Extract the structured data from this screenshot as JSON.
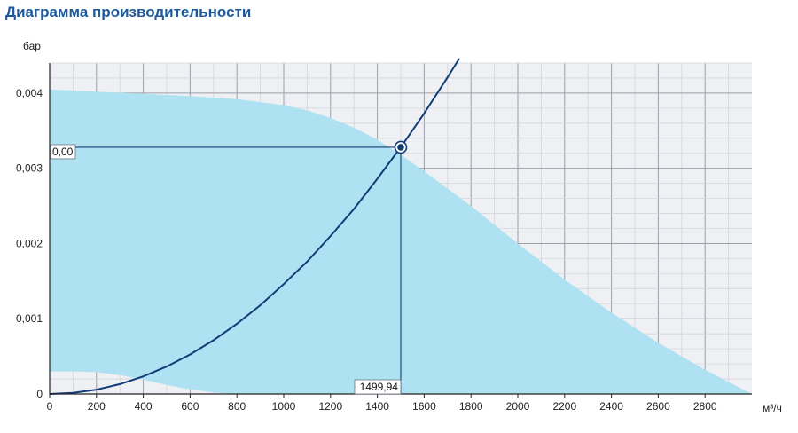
{
  "title": "Диаграмма производительности",
  "colors": {
    "title": "#1d5a9c",
    "plot_background": "#eef0f3",
    "grid_minor": "#d2d6db",
    "grid_major": "#9aa1a8",
    "envelope_fill": "#aee1f1",
    "system_curve": "#123c78",
    "axis": "#222222"
  },
  "chart_data": {
    "type": "area",
    "xlabel": "м³/ч",
    "ylabel": "бар",
    "xlim": [
      0,
      3000
    ],
    "ylim": [
      0,
      0.0044
    ],
    "x_ticks": [
      0,
      200,
      400,
      600,
      800,
      1000,
      1200,
      1400,
      1600,
      1800,
      2000,
      2200,
      2400,
      2600,
      2800
    ],
    "x_tick_labels": [
      "0",
      "200",
      "400",
      "600",
      "800",
      "1000",
      "1200",
      "1400",
      "1600",
      "1800",
      "2000",
      "2200",
      "2400",
      "2600",
      "2800"
    ],
    "y_ticks": [
      0,
      0.001,
      0.002,
      0.003,
      0.004
    ],
    "y_tick_labels": [
      "0",
      "0,001",
      "0,002",
      "0,003",
      "0,004"
    ],
    "grid": true,
    "series": [
      {
        "kind": "envelope",
        "upper": {
          "x": [
            0,
            200,
            400,
            600,
            800,
            1000,
            1100,
            1200,
            1300,
            1400,
            1500,
            1600,
            1800,
            2000,
            2200,
            2400,
            2600,
            2800,
            3000
          ],
          "y": [
            0.00405,
            0.00402,
            0.00399,
            0.00396,
            0.00392,
            0.00384,
            0.00377,
            0.00367,
            0.00354,
            0.00338,
            0.00318,
            0.00296,
            0.0025,
            0.002,
            0.00152,
            0.00108,
            0.00068,
            0.00032,
            0.0
          ]
        },
        "lower": {
          "x": [
            0,
            100,
            200,
            300,
            400,
            500,
            600,
            700,
            800,
            1500,
            2400,
            3000
          ],
          "y": [
            0.0003,
            0.0003,
            0.00029,
            0.00025,
            0.00019,
            0.00012,
            6e-05,
            2e-05,
            0.0,
            0.0,
            0.0,
            0.0
          ]
        }
      },
      {
        "kind": "system_curve",
        "x": [
          0,
          100,
          200,
          300,
          400,
          500,
          600,
          700,
          800,
          900,
          1000,
          1100,
          1200,
          1300,
          1400,
          1500,
          1600,
          1700,
          1750
        ],
        "y": [
          0.0,
          1.46e-05,
          5.83e-05,
          0.000131,
          0.000233,
          0.000364,
          0.000525,
          0.000714,
          0.000933,
          0.00118,
          0.00146,
          0.00176,
          0.0021,
          0.00246,
          0.00286,
          0.00328,
          0.00373,
          0.00421,
          0.00446
        ]
      }
    ],
    "operating_point": {
      "x": 1499.94,
      "y": 0.00328,
      "x_label": "1499,94",
      "y_label": "0,00"
    }
  }
}
